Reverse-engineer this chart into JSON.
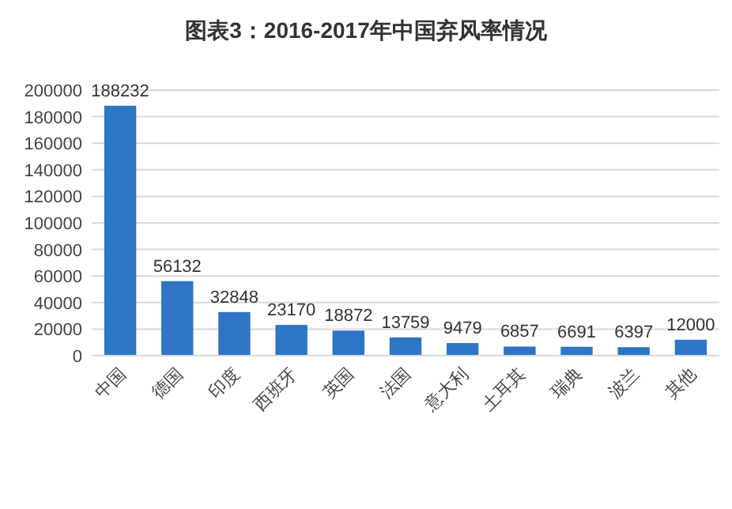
{
  "chart_data": {
    "type": "bar",
    "title": "图表3：2016-2017年中国弃风率情况",
    "categories": [
      "中国",
      "德国",
      "印度",
      "西班牙",
      "英国",
      "法国",
      "意大利",
      "土耳其",
      "瑞典",
      "波兰",
      "其他"
    ],
    "values": [
      188232,
      56132,
      32848,
      23170,
      18872,
      13759,
      9479,
      6857,
      6691,
      6397,
      12000
    ],
    "color": "#2e75c6",
    "ylim": [
      0,
      200000
    ],
    "yticks": [
      0,
      20000,
      40000,
      60000,
      80000,
      100000,
      120000,
      140000,
      160000,
      180000,
      200000
    ],
    "grid": "y",
    "data_labels": true
  }
}
